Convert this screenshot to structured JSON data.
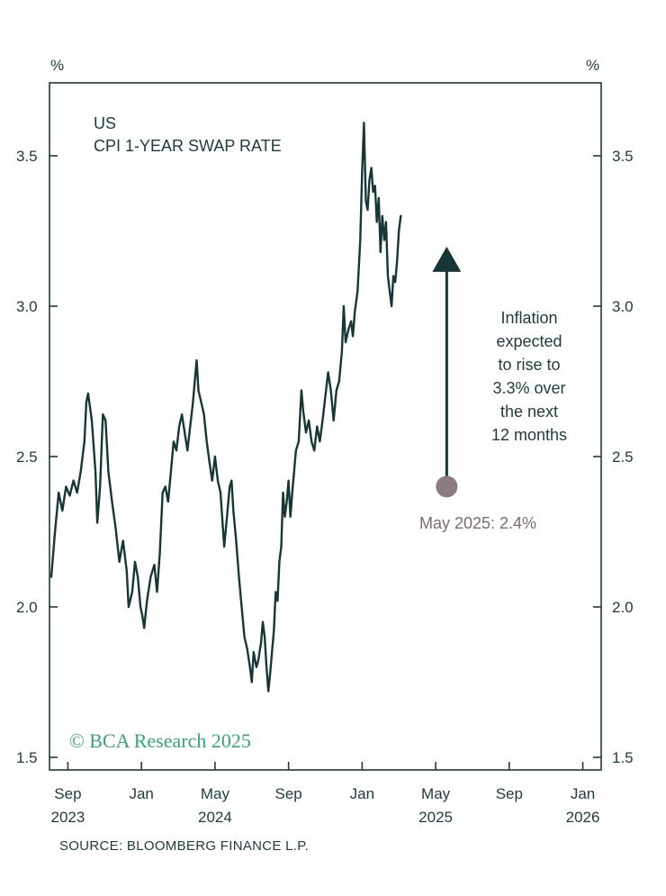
{
  "chart_data": {
    "type": "line",
    "title": "US",
    "subtitle": "CPI 1-YEAR SWAP RATE",
    "left_unit": "%",
    "right_unit": "%",
    "ylim": [
      1.5,
      3.75
    ],
    "y_ticks": [
      1.5,
      2.0,
      2.5,
      3.0,
      3.5
    ],
    "y_tick_labels": [
      "1.5",
      "2.0",
      "2.5",
      "3.0",
      "3.5"
    ],
    "x_range_months": [
      0,
      30
    ],
    "x_ticks": [
      {
        "month": 1,
        "label": "Sep",
        "year": "2023"
      },
      {
        "month": 5,
        "label": "Jan",
        "year": ""
      },
      {
        "month": 9,
        "label": "May",
        "year": "2024"
      },
      {
        "month": 13,
        "label": "Sep",
        "year": ""
      },
      {
        "month": 17,
        "label": "Jan",
        "year": ""
      },
      {
        "month": 21,
        "label": "May",
        "year": "2025"
      },
      {
        "month": 25,
        "label": "Sep",
        "year": ""
      },
      {
        "month": 29,
        "label": "Jan",
        "year": "2026"
      }
    ],
    "series": [
      {
        "name": "CPI 1-year swap rate",
        "color": "#173636",
        "points": [
          [
            0.1,
            2.1
          ],
          [
            0.3,
            2.25
          ],
          [
            0.5,
            2.38
          ],
          [
            0.7,
            2.32
          ],
          [
            0.9,
            2.4
          ],
          [
            1.1,
            2.37
          ],
          [
            1.3,
            2.42
          ],
          [
            1.5,
            2.38
          ],
          [
            1.7,
            2.45
          ],
          [
            1.9,
            2.55
          ],
          [
            2.0,
            2.68
          ],
          [
            2.1,
            2.71
          ],
          [
            2.3,
            2.62
          ],
          [
            2.5,
            2.45
          ],
          [
            2.6,
            2.28
          ],
          [
            2.75,
            2.4
          ],
          [
            2.9,
            2.64
          ],
          [
            3.05,
            2.62
          ],
          [
            3.2,
            2.45
          ],
          [
            3.4,
            2.35
          ],
          [
            3.6,
            2.26
          ],
          [
            3.8,
            2.15
          ],
          [
            4.0,
            2.22
          ],
          [
            4.2,
            2.12
          ],
          [
            4.3,
            2.0
          ],
          [
            4.5,
            2.05
          ],
          [
            4.65,
            2.15
          ],
          [
            4.8,
            2.1
          ],
          [
            4.95,
            2.0
          ],
          [
            5.05,
            1.97
          ],
          [
            5.15,
            1.93
          ],
          [
            5.3,
            2.02
          ],
          [
            5.5,
            2.1
          ],
          [
            5.7,
            2.14
          ],
          [
            5.85,
            2.05
          ],
          [
            6.0,
            2.18
          ],
          [
            6.15,
            2.38
          ],
          [
            6.3,
            2.4
          ],
          [
            6.45,
            2.35
          ],
          [
            6.6,
            2.45
          ],
          [
            6.75,
            2.55
          ],
          [
            6.9,
            2.52
          ],
          [
            7.05,
            2.6
          ],
          [
            7.2,
            2.64
          ],
          [
            7.35,
            2.58
          ],
          [
            7.5,
            2.52
          ],
          [
            7.65,
            2.6
          ],
          [
            7.8,
            2.68
          ],
          [
            7.9,
            2.75
          ],
          [
            8.0,
            2.82
          ],
          [
            8.1,
            2.72
          ],
          [
            8.25,
            2.68
          ],
          [
            8.4,
            2.64
          ],
          [
            8.55,
            2.55
          ],
          [
            8.7,
            2.48
          ],
          [
            8.85,
            2.42
          ],
          [
            9.0,
            2.5
          ],
          [
            9.15,
            2.42
          ],
          [
            9.3,
            2.38
          ],
          [
            9.5,
            2.2
          ],
          [
            9.65,
            2.3
          ],
          [
            9.8,
            2.4
          ],
          [
            9.9,
            2.42
          ],
          [
            10.0,
            2.32
          ],
          [
            10.15,
            2.22
          ],
          [
            10.3,
            2.1
          ],
          [
            10.45,
            2.0
          ],
          [
            10.6,
            1.9
          ],
          [
            10.75,
            1.86
          ],
          [
            10.9,
            1.8
          ],
          [
            11.0,
            1.75
          ],
          [
            11.1,
            1.85
          ],
          [
            11.25,
            1.8
          ],
          [
            11.35,
            1.82
          ],
          [
            11.5,
            1.88
          ],
          [
            11.6,
            1.95
          ],
          [
            11.7,
            1.9
          ],
          [
            11.8,
            1.8
          ],
          [
            11.9,
            1.72
          ],
          [
            12.0,
            1.78
          ],
          [
            12.1,
            1.85
          ],
          [
            12.2,
            1.92
          ],
          [
            12.3,
            2.05
          ],
          [
            12.4,
            2.02
          ],
          [
            12.5,
            2.15
          ],
          [
            12.6,
            2.2
          ],
          [
            12.7,
            2.38
          ],
          [
            12.8,
            2.3
          ],
          [
            12.9,
            2.35
          ],
          [
            13.0,
            2.42
          ],
          [
            13.1,
            2.3
          ],
          [
            13.2,
            2.38
          ],
          [
            13.3,
            2.45
          ],
          [
            13.4,
            2.52
          ],
          [
            13.55,
            2.55
          ],
          [
            13.7,
            2.72
          ],
          [
            13.8,
            2.65
          ],
          [
            13.95,
            2.58
          ],
          [
            14.1,
            2.62
          ],
          [
            14.25,
            2.55
          ],
          [
            14.4,
            2.52
          ],
          [
            14.55,
            2.6
          ],
          [
            14.7,
            2.55
          ],
          [
            14.85,
            2.62
          ],
          [
            15.0,
            2.7
          ],
          [
            15.15,
            2.78
          ],
          [
            15.3,
            2.72
          ],
          [
            15.45,
            2.62
          ],
          [
            15.6,
            2.72
          ],
          [
            15.75,
            2.75
          ],
          [
            15.9,
            2.85
          ],
          [
            16.0,
            3.0
          ],
          [
            16.1,
            2.88
          ],
          [
            16.25,
            2.92
          ],
          [
            16.4,
            2.95
          ],
          [
            16.5,
            2.9
          ],
          [
            16.6,
            2.98
          ],
          [
            16.75,
            3.05
          ],
          [
            16.9,
            3.22
          ],
          [
            17.0,
            3.45
          ],
          [
            17.1,
            3.61
          ],
          [
            17.2,
            3.35
          ],
          [
            17.3,
            3.32
          ],
          [
            17.4,
            3.42
          ],
          [
            17.5,
            3.46
          ],
          [
            17.6,
            3.38
          ],
          [
            17.7,
            3.4
          ],
          [
            17.8,
            3.28
          ],
          [
            17.9,
            3.36
          ],
          [
            18.0,
            3.18
          ],
          [
            18.1,
            3.3
          ],
          [
            18.2,
            3.22
          ],
          [
            18.3,
            3.28
          ],
          [
            18.4,
            3.1
          ],
          [
            18.5,
            3.05
          ],
          [
            18.6,
            3.0
          ],
          [
            18.7,
            3.1
          ],
          [
            18.8,
            3.08
          ],
          [
            18.9,
            3.15
          ],
          [
            19.0,
            3.25
          ],
          [
            19.1,
            3.3
          ]
        ]
      }
    ],
    "annotation": {
      "lines": [
        "Inflation",
        "expected",
        "to rise to",
        "3.3% over",
        "the next",
        "12 months"
      ],
      "arrow_from": {
        "month": 21.6,
        "value": 2.4
      },
      "arrow_to": {
        "month": 21.6,
        "value": 3.18
      },
      "marker": {
        "month": 21.6,
        "value": 2.4,
        "color": "#8c7b7f",
        "label": "May 2025: 2.4%"
      },
      "arrow_color": "#173636"
    },
    "watermark": "© BCA Research 2025",
    "source": "SOURCE: BLOOMBERG FINANCE L.P."
  }
}
